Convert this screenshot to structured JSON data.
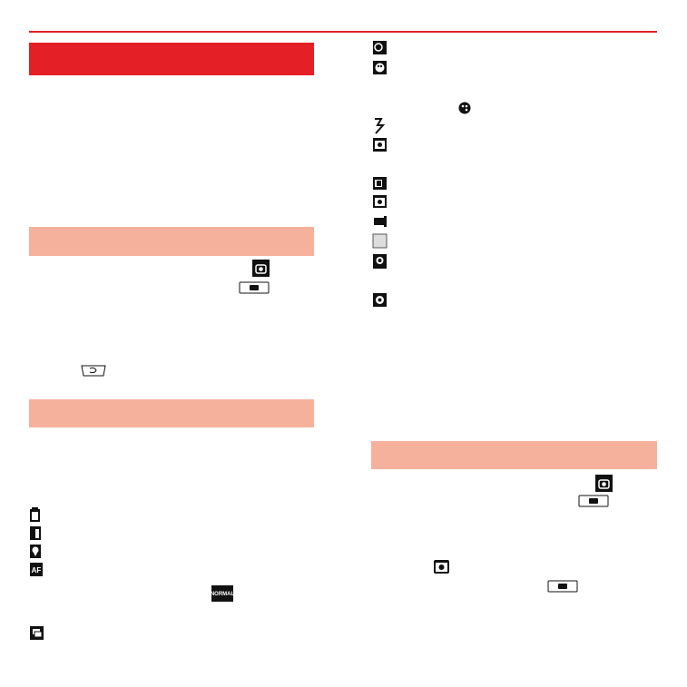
{
  "badges": [
    "NORMAL"
  ]
}
